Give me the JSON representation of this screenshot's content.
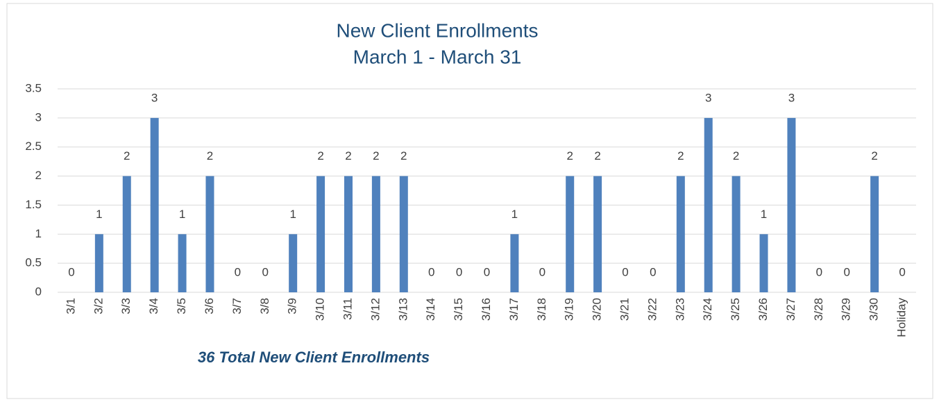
{
  "chart_data": {
    "type": "bar",
    "title": "New Client Enrollments",
    "subtitle": "March 1 - March 31",
    "annotation": "36 Total New Client Enrollments",
    "categories": [
      "3/1",
      "3/2",
      "3/3",
      "3/4",
      "3/5",
      "3/6",
      "3/7",
      "3/8",
      "3/9",
      "3/10",
      "3/11",
      "3/12",
      "3/13",
      "3/14",
      "3/15",
      "3/16",
      "3/17",
      "3/18",
      "3/19",
      "3/20",
      "3/21",
      "3/22",
      "3/23",
      "3/24",
      "3/25",
      "3/26",
      "3/27",
      "3/28",
      "3/29",
      "3/30",
      "Holiday"
    ],
    "values": [
      0,
      1,
      2,
      3,
      1,
      2,
      0,
      0,
      1,
      2,
      2,
      2,
      2,
      0,
      0,
      0,
      1,
      0,
      2,
      2,
      0,
      0,
      2,
      3,
      2,
      1,
      3,
      0,
      0,
      2,
      0
    ],
    "color": "#4f81bd",
    "ylim": [
      0,
      3.5
    ],
    "yticks": [
      0,
      0.5,
      1,
      1.5,
      2,
      2.5,
      3,
      3.5
    ],
    "grid": true,
    "data_labels": true
  }
}
